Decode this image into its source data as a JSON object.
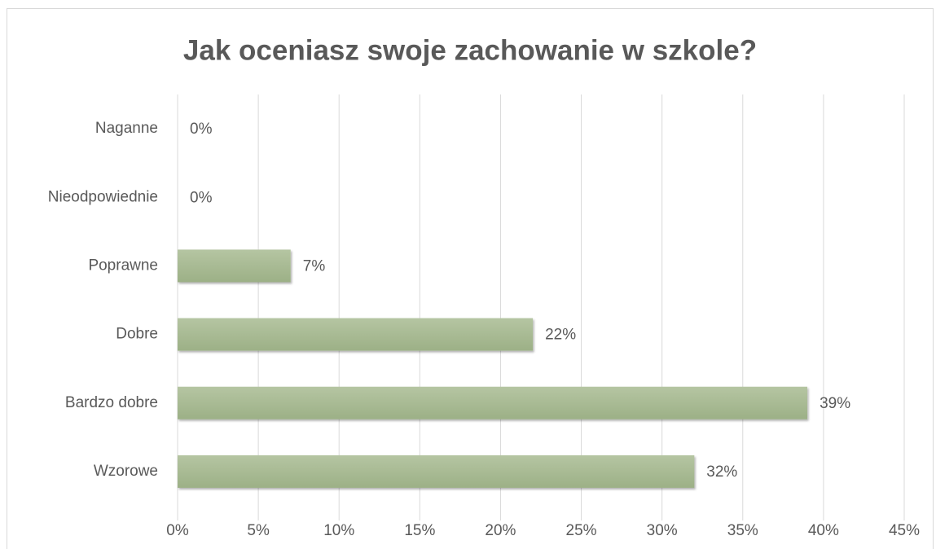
{
  "chart_data": {
    "type": "bar",
    "orientation": "horizontal",
    "title": "Jak oceniasz swoje zachowanie w szkole?",
    "categories": [
      "Naganne",
      "Nieodpowiednie",
      "Poprawne",
      "Dobre",
      "Bardzo dobre",
      "Wzorowe"
    ],
    "values": [
      0,
      0,
      7,
      22,
      39,
      32
    ],
    "value_labels": [
      "0%",
      "0%",
      "7%",
      "22%",
      "39%",
      "32%"
    ],
    "color": "#a7b992",
    "xlim": [
      0,
      45
    ],
    "xticks": [
      {
        "value": 0,
        "label": "0%"
      },
      {
        "value": 5,
        "label": "5%"
      },
      {
        "value": 10,
        "label": "10%"
      },
      {
        "value": 15,
        "label": "15%"
      },
      {
        "value": 20,
        "label": "20%"
      },
      {
        "value": 25,
        "label": "25%"
      },
      {
        "value": 30,
        "label": "30%"
      },
      {
        "value": 35,
        "label": "35%"
      },
      {
        "value": 40,
        "label": "40%"
      },
      {
        "value": 45,
        "label": "45%"
      }
    ],
    "grid": true
  }
}
